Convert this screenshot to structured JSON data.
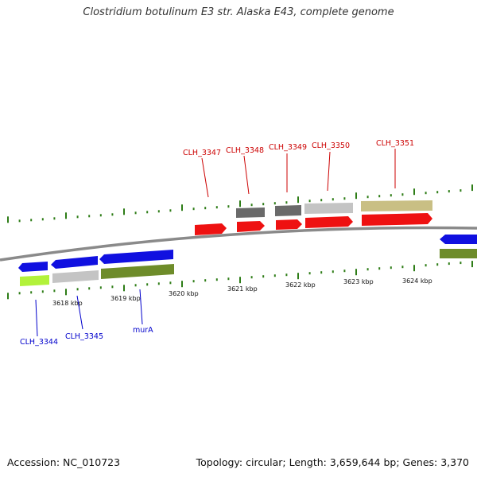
{
  "title": "Clostridium botulinum E3 str. Alaska E43, complete genome",
  "footer": {
    "accession": "Accession: NC_010723",
    "summary": "Topology: circular; Length: 3,659,644 bp; Genes: 3,370"
  },
  "colors": {
    "backbone": "#8a8a8a",
    "tick": "#2e7d17",
    "forward_gene": "#1010e0",
    "reverse_gene": "#ee1111",
    "label_forward": "#0000cc",
    "label_reverse": "#cc0000",
    "cds_grey": "#c4c4c4",
    "cds_dark": "#6a6a6a",
    "cds_olive": "#6e8c2a",
    "cds_lime": "#b2f23a",
    "cds_khaki": "#c9bf84"
  },
  "kbp_labels": [
    "3618 kbp",
    "3619 kbp",
    "3620 kbp",
    "3621 kbp",
    "3622 kbp",
    "3623 kbp",
    "3624 kbp"
  ],
  "genes_top": [
    "CLH_3347",
    "CLH_3348",
    "CLH_3349",
    "CLH_3350",
    "CLH_3351"
  ],
  "genes_bottom": [
    "CLH_3344",
    "CLH_3345",
    "murA"
  ]
}
